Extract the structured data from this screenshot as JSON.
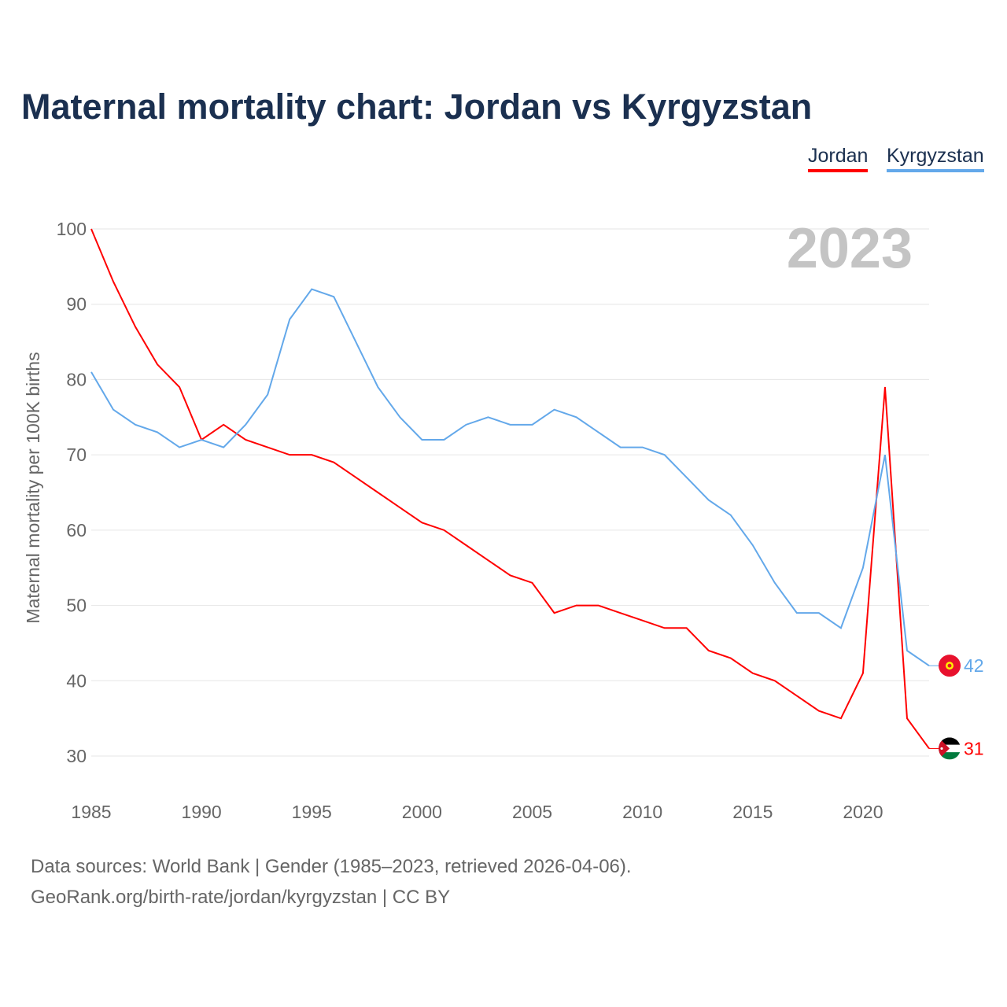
{
  "title": "Maternal mortality chart: Jordan vs Kyrgyzstan",
  "year_label": "2023",
  "footer": {
    "line1": "Data sources: World Bank | Gender (1985–2023, retrieved 2026-04-06).",
    "line2": "GeoRank.org/birth-rate/jordan/kyrgyzstan | CC BY"
  },
  "chart_data": {
    "type": "line",
    "title": "Maternal mortality chart: Jordan vs Kyrgyzstan",
    "xlabel": "",
    "ylabel": "Maternal mortality per 100K births",
    "xlim": [
      1985,
      2023
    ],
    "ylim": [
      30,
      100
    ],
    "yticks": [
      30,
      40,
      50,
      60,
      70,
      80,
      90,
      100
    ],
    "xticks": [
      1985,
      1990,
      1995,
      2000,
      2005,
      2010,
      2015,
      2020
    ],
    "grid": true,
    "legend_position": "top-right",
    "x": [
      1985,
      1986,
      1987,
      1988,
      1989,
      1990,
      1991,
      1992,
      1993,
      1994,
      1995,
      1996,
      1997,
      1998,
      1999,
      2000,
      2001,
      2002,
      2003,
      2004,
      2005,
      2006,
      2007,
      2008,
      2009,
      2010,
      2011,
      2012,
      2013,
      2014,
      2015,
      2016,
      2017,
      2018,
      2019,
      2020,
      2021,
      2022,
      2023
    ],
    "series": [
      {
        "name": "Jordan",
        "color": "#ff0000",
        "end_label": "31",
        "values": [
          100,
          93,
          87,
          82,
          79,
          72,
          74,
          72,
          71,
          70,
          70,
          69,
          67,
          65,
          63,
          61,
          60,
          58,
          56,
          54,
          53,
          49,
          50,
          50,
          49,
          48,
          47,
          47,
          44,
          43,
          41,
          40,
          38,
          36,
          35,
          41,
          79,
          35,
          31
        ]
      },
      {
        "name": "Kyrgyzstan",
        "color": "#63a8ea",
        "end_label": "42",
        "values": [
          81,
          76,
          74,
          73,
          71,
          72,
          71,
          74,
          78,
          88,
          92,
          91,
          85,
          79,
          75,
          72,
          72,
          74,
          75,
          74,
          74,
          76,
          75,
          73,
          71,
          71,
          70,
          67,
          64,
          62,
          58,
          53,
          49,
          49,
          47,
          55,
          70,
          44,
          42
        ]
      }
    ]
  }
}
